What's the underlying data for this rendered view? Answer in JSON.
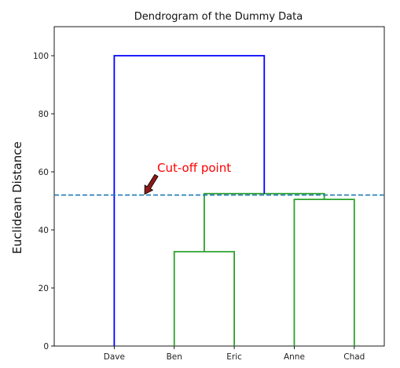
{
  "chart_data": {
    "type": "dendrogram",
    "title": "Dendrogram of the Dummy Data",
    "xlabel": "",
    "ylabel": "Euclidean Distance",
    "leaves": [
      "Dave",
      "Ben",
      "Eric",
      "Anne",
      "Chad"
    ],
    "ylim": [
      0,
      110
    ],
    "yticks": [
      0,
      20,
      40,
      60,
      80,
      100
    ],
    "merges": [
      {
        "left": "Ben",
        "right": "Eric",
        "height": 32.5,
        "color": "#2ca02c"
      },
      {
        "left": "Anne",
        "right": "Chad",
        "height": 50.5,
        "color": "#2ca02c"
      },
      {
        "left": "Ben+Eric",
        "right": "Anne+Chad",
        "height": 52.5,
        "color": "#2ca02c"
      },
      {
        "left": "Dave",
        "right": "Ben+Eric+Anne+Chad",
        "height": 100,
        "color": "#0000ff"
      }
    ],
    "cutoff": {
      "value": 52,
      "color": "#1f77b4",
      "style": "dashed"
    },
    "annotation": {
      "text": "Cut-off point",
      "color": "#ff0000",
      "arrow_color": "#8b1a1a"
    }
  }
}
